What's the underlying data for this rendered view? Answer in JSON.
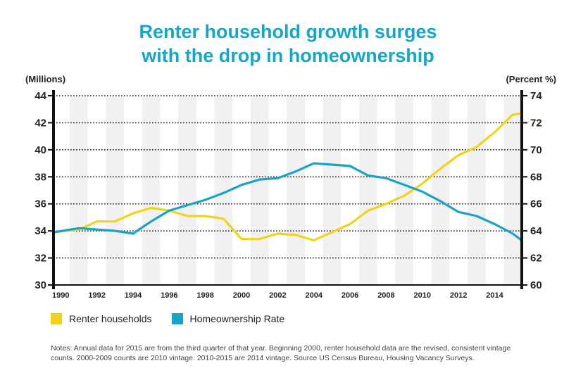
{
  "title_line1": "Renter household growth surges",
  "title_line2": "with the drop in homeownership",
  "notes": "Notes: Annual data for 2015 are from the third quarter of that year. Beginning 2000, renter household data are the revised, consistent vintage counts. 2000-2009 counts are 2010 vintage. 2010-2015 are 2014 vintage. Source US Census Bureau, Housing Vacancy Surveys.",
  "colors": {
    "title": "#16a6c9",
    "renter": "#f2d31b",
    "homeownership": "#1aa3c8"
  },
  "chart_data": {
    "type": "line",
    "left_axis_label": "(Millions)",
    "right_axis_label": "(Percent %)",
    "left_ylim": [
      30,
      44
    ],
    "right_ylim": [
      60,
      74
    ],
    "left_ticks": [
      30,
      32,
      34,
      36,
      38,
      40,
      42,
      44
    ],
    "right_ticks": [
      60,
      62,
      64,
      66,
      68,
      70,
      72,
      74
    ],
    "xlim": [
      1989.6,
      2015.5
    ],
    "x_ticks": [
      1990,
      1992,
      1994,
      1996,
      1998,
      2000,
      2002,
      2004,
      2006,
      2008,
      2010,
      2012,
      2014
    ],
    "grid": "horizontal dotted lines with alternating vertical shaded bands",
    "legend_position": "bottom-left",
    "series": [
      {
        "name": "Renter households",
        "axis": "left",
        "color": "#f2d31b",
        "x": [
          1989.6,
          1991,
          1992,
          1993,
          1994,
          1995,
          1996,
          1997,
          1998,
          1999,
          2000,
          2001,
          2002,
          2003,
          2004,
          2005,
          2006,
          2007,
          2008,
          2009,
          2010,
          2011,
          2012,
          2013,
          2014,
          2015,
          2015.5
        ],
        "values": [
          33.9,
          34.1,
          34.7,
          34.7,
          35.3,
          35.7,
          35.5,
          35.1,
          35.1,
          34.9,
          33.4,
          33.4,
          33.8,
          33.7,
          33.3,
          33.9,
          34.5,
          35.5,
          36.0,
          36.6,
          37.5,
          38.6,
          39.6,
          40.2,
          41.3,
          42.6,
          42.7
        ]
      },
      {
        "name": "Homeownership Rate",
        "axis": "right",
        "color": "#1aa3c8",
        "x": [
          1989.6,
          1991,
          1992,
          1993,
          1994,
          1995,
          1996,
          1997,
          1998,
          1999,
          2000,
          2001,
          2002,
          2003,
          2004,
          2005,
          2006,
          2007,
          2008,
          2009,
          2010,
          2011,
          2012,
          2013,
          2014,
          2015,
          2015.5
        ],
        "values": [
          63.9,
          64.2,
          64.1,
          64.0,
          63.8,
          64.7,
          65.5,
          65.9,
          66.3,
          66.8,
          67.4,
          67.8,
          67.9,
          68.4,
          69.0,
          68.9,
          68.8,
          68.1,
          67.9,
          67.4,
          66.9,
          66.2,
          65.4,
          65.1,
          64.5,
          63.8,
          63.3
        ]
      }
    ]
  }
}
